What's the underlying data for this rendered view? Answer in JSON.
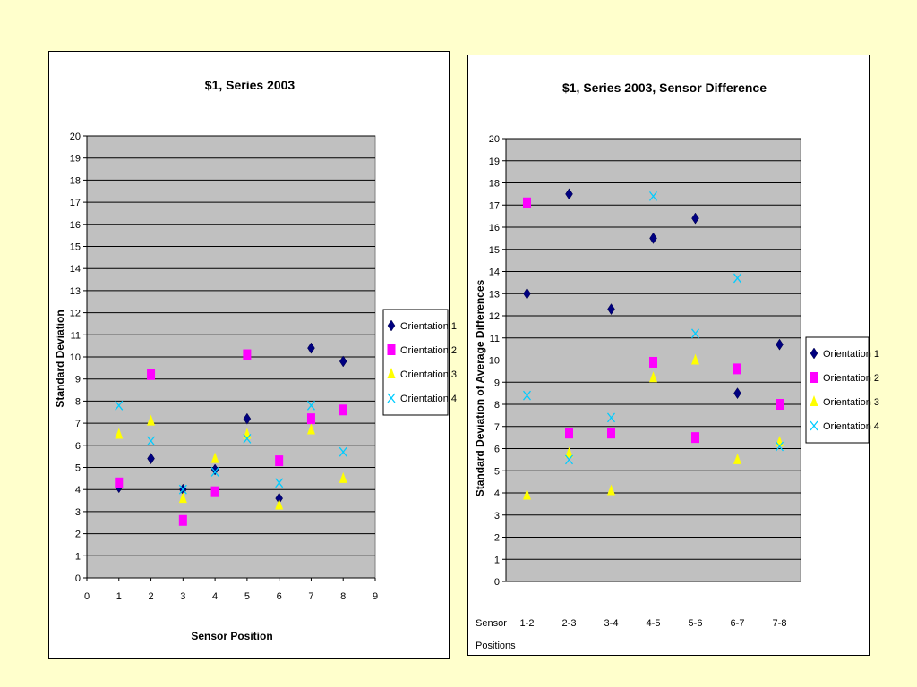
{
  "chart_data": [
    {
      "type": "scatter",
      "title": "$1, Series 2003",
      "xlabel": "Sensor Position",
      "ylabel": "Standard Deviation",
      "xlim": [
        0,
        9
      ],
      "ylim": [
        0,
        20
      ],
      "xticks": [
        "0",
        "1",
        "2",
        "3",
        "4",
        "5",
        "6",
        "7",
        "8",
        "9"
      ],
      "yticks": [
        "0",
        "1",
        "2",
        "3",
        "4",
        "5",
        "6",
        "7",
        "8",
        "9",
        "10",
        "11",
        "12",
        "13",
        "14",
        "15",
        "16",
        "17",
        "18",
        "19",
        "20"
      ],
      "grid": true,
      "legend_position": "right",
      "series": [
        {
          "name": "Orientation 1",
          "marker": "diamond",
          "color": "#000080",
          "x": [
            1,
            2,
            3,
            4,
            5,
            6,
            7,
            8
          ],
          "y": [
            4.1,
            5.4,
            4.0,
            4.9,
            7.2,
            3.6,
            10.4,
            9.8
          ]
        },
        {
          "name": "Orientation 2",
          "marker": "square",
          "color": "#ff00ff",
          "x": [
            1,
            2,
            3,
            4,
            5,
            6,
            7,
            8
          ],
          "y": [
            4.3,
            9.2,
            2.6,
            3.9,
            10.1,
            5.3,
            7.2,
            7.6
          ]
        },
        {
          "name": "Orientation 3",
          "marker": "triangle",
          "color": "#ffff00",
          "x": [
            1,
            2,
            3,
            4,
            5,
            6,
            7,
            8
          ],
          "y": [
            6.5,
            7.1,
            3.6,
            5.4,
            6.5,
            3.3,
            6.7,
            4.5
          ]
        },
        {
          "name": "Orientation 4",
          "marker": "x",
          "color": "#00ccff",
          "x": [
            1,
            2,
            3,
            4,
            5,
            6,
            7,
            8
          ],
          "y": [
            7.8,
            6.2,
            4.0,
            4.8,
            6.3,
            4.3,
            7.8,
            5.7
          ]
        }
      ]
    },
    {
      "type": "scatter",
      "title": "$1, Series 2003, Sensor Difference",
      "xlabel": "",
      "ylabel": "Standard Deviation of Average Differences",
      "categories": [
        "1-2",
        "2-3",
        "3-4",
        "4-5",
        "5-6",
        "6-7",
        "7-8"
      ],
      "category_lead_label": "Sensor",
      "category_sub_label": "Positions",
      "ylim": [
        0,
        20
      ],
      "yticks": [
        "0",
        "1",
        "2",
        "3",
        "4",
        "5",
        "6",
        "7",
        "8",
        "9",
        "10",
        "11",
        "12",
        "13",
        "14",
        "15",
        "16",
        "17",
        "18",
        "19",
        "20"
      ],
      "grid": true,
      "legend_position": "right",
      "series": [
        {
          "name": "Orientation 1",
          "marker": "diamond",
          "color": "#000080",
          "y": [
            13.0,
            17.5,
            12.3,
            15.5,
            16.4,
            8.5,
            10.7
          ]
        },
        {
          "name": "Orientation 2",
          "marker": "square",
          "color": "#ff00ff",
          "y": [
            17.1,
            6.7,
            6.7,
            9.9,
            6.5,
            9.6,
            8.0
          ]
        },
        {
          "name": "Orientation 3",
          "marker": "triangle",
          "color": "#ffff00",
          "y": [
            3.9,
            5.8,
            4.1,
            9.2,
            10.0,
            5.5,
            6.3
          ]
        },
        {
          "name": "Orientation 4",
          "marker": "x",
          "color": "#00ccff",
          "y": [
            8.4,
            5.5,
            7.4,
            17.4,
            11.2,
            13.7,
            6.1
          ]
        }
      ]
    }
  ]
}
